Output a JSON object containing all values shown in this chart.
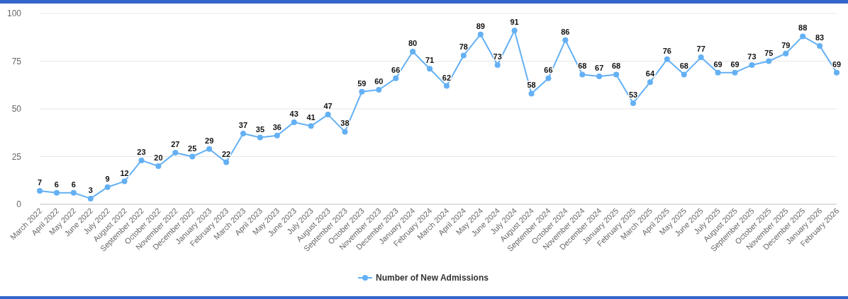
{
  "chart_data": {
    "type": "line",
    "categories": [
      "March 2022",
      "April 2022",
      "May 2022",
      "June 2022",
      "July 2022",
      "August 2022",
      "September 2022",
      "October 2022",
      "November 2022",
      "December 2022",
      "January 2023",
      "February 2023",
      "March 2023",
      "April 2023",
      "May 2023",
      "June 2023",
      "July 2023",
      "August 2023",
      "September 2023",
      "October 2023",
      "November 2023",
      "December 2023",
      "January 2024",
      "February 2024",
      "March 2024",
      "April 2024",
      "May 2024",
      "June 2024",
      "July 2024",
      "August 2024",
      "September 2024",
      "October 2024",
      "November 2024",
      "December 2024",
      "January 2025",
      "February 2025",
      "March 2025",
      "April 2025",
      "May 2025",
      "June 2025",
      "July 2025",
      "August 2025",
      "September 2025",
      "October 2025",
      "November 2025",
      "December 2025",
      "January 2026",
      "February 2026"
    ],
    "series": [
      {
        "name": "Number of New Admissions",
        "color": "#64b0f4",
        "values": [
          7,
          6,
          6,
          3,
          9,
          12,
          23,
          20,
          27,
          25,
          29,
          22,
          37,
          35,
          36,
          43,
          41,
          47,
          38,
          59,
          60,
          66,
          80,
          71,
          62,
          78,
          89,
          73,
          91,
          58,
          66,
          86,
          68,
          67,
          68,
          53,
          64,
          76,
          68,
          77,
          69,
          69,
          73,
          75,
          79,
          88,
          83,
          69
        ]
      }
    ],
    "ylim": [
      0,
      100
    ],
    "yticks": [
      0,
      25,
      50,
      75,
      100
    ],
    "grid": "y",
    "legend": "bottom",
    "marker": "circle",
    "line_style": "solid",
    "data_labels": true
  }
}
